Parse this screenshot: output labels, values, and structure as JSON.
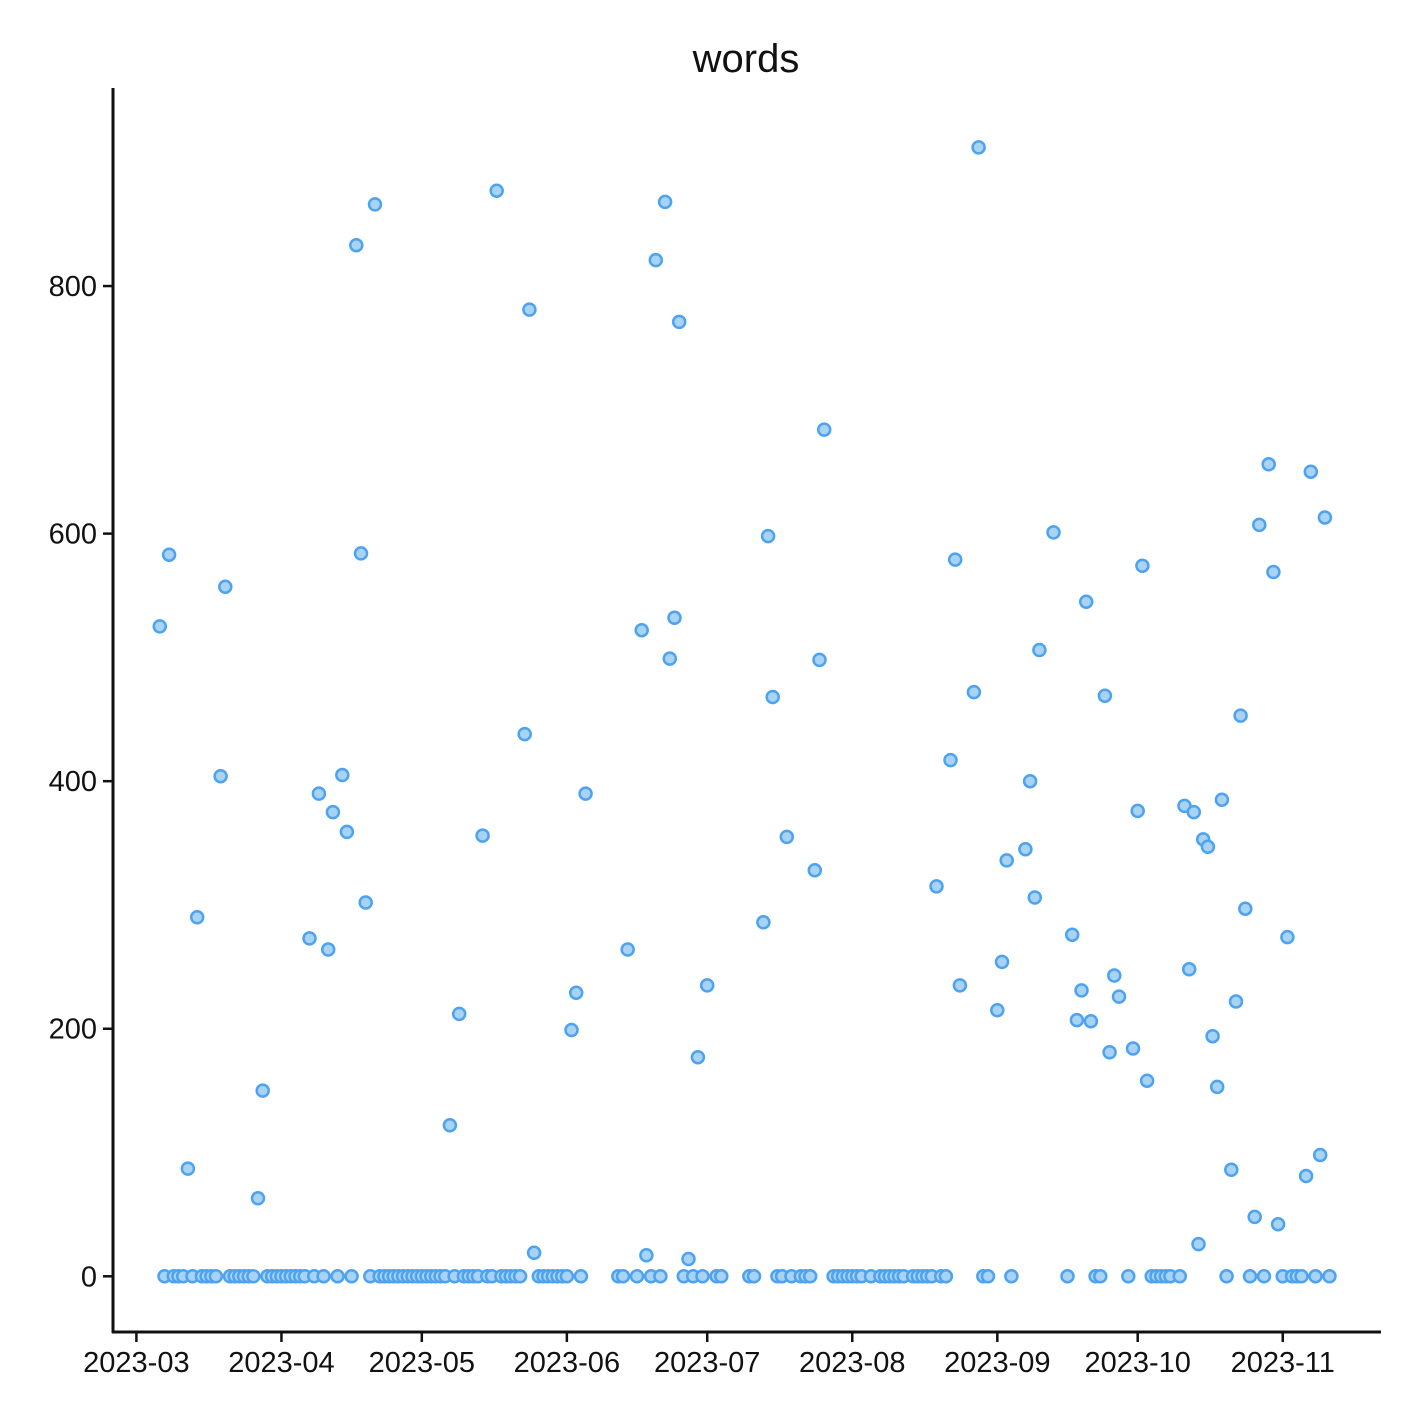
{
  "chart_data": {
    "type": "scatter",
    "title": "words",
    "xlabel": "",
    "ylabel": "",
    "x_axis_type": "date",
    "xlim": [
      "2023-02-24",
      "2023-11-22"
    ],
    "ylim": [
      -45,
      960
    ],
    "x_ticks": [
      "2023-03-01",
      "2023-04-01",
      "2023-05-01",
      "2023-06-01",
      "2023-07-01",
      "2023-08-01",
      "2023-09-01",
      "2023-10-01",
      "2023-11-01"
    ],
    "x_tick_labels": [
      "2023-03",
      "2023-04",
      "2023-05",
      "2023-06",
      "2023-07",
      "2023-08",
      "2023-09",
      "2023-10",
      "2023-11"
    ],
    "y_ticks": [
      0,
      200,
      400,
      600,
      800
    ],
    "y_tick_labels": [
      "0",
      "200",
      "400",
      "600",
      "800"
    ],
    "grid": false,
    "marker_fill": "#a9d3f5",
    "marker_edge": "#4da3f0",
    "points": [
      [
        "2023-03-06",
        525
      ],
      [
        "2023-03-07",
        0
      ],
      [
        "2023-03-08",
        583
      ],
      [
        "2023-03-09",
        0
      ],
      [
        "2023-03-10",
        0
      ],
      [
        "2023-03-11",
        0
      ],
      [
        "2023-03-12",
        87
      ],
      [
        "2023-03-13",
        0
      ],
      [
        "2023-03-14",
        290
      ],
      [
        "2023-03-15",
        0
      ],
      [
        "2023-03-16",
        0
      ],
      [
        "2023-03-17",
        0
      ],
      [
        "2023-03-18",
        0
      ],
      [
        "2023-03-19",
        404
      ],
      [
        "2023-03-20",
        557
      ],
      [
        "2023-03-21",
        0
      ],
      [
        "2023-03-22",
        0
      ],
      [
        "2023-03-23",
        0
      ],
      [
        "2023-03-24",
        0
      ],
      [
        "2023-03-25",
        0
      ],
      [
        "2023-03-26",
        0
      ],
      [
        "2023-03-27",
        63
      ],
      [
        "2023-03-28",
        150
      ],
      [
        "2023-03-29",
        0
      ],
      [
        "2023-03-30",
        0
      ],
      [
        "2023-03-31",
        0
      ],
      [
        "2023-04-01",
        0
      ],
      [
        "2023-04-02",
        0
      ],
      [
        "2023-04-03",
        0
      ],
      [
        "2023-04-04",
        0
      ],
      [
        "2023-04-05",
        0
      ],
      [
        "2023-04-06",
        0
      ],
      [
        "2023-04-07",
        273
      ],
      [
        "2023-04-08",
        0
      ],
      [
        "2023-04-09",
        390
      ],
      [
        "2023-04-10",
        0
      ],
      [
        "2023-04-11",
        264
      ],
      [
        "2023-04-12",
        375
      ],
      [
        "2023-04-13",
        0
      ],
      [
        "2023-04-14",
        405
      ],
      [
        "2023-04-15",
        359
      ],
      [
        "2023-04-16",
        0
      ],
      [
        "2023-04-17",
        833
      ],
      [
        "2023-04-18",
        584
      ],
      [
        "2023-04-19",
        302
      ],
      [
        "2023-04-20",
        0
      ],
      [
        "2023-04-21",
        866
      ],
      [
        "2023-04-22",
        0
      ],
      [
        "2023-04-23",
        0
      ],
      [
        "2023-04-24",
        0
      ],
      [
        "2023-04-25",
        0
      ],
      [
        "2023-04-26",
        0
      ],
      [
        "2023-04-27",
        0
      ],
      [
        "2023-04-28",
        0
      ],
      [
        "2023-04-29",
        0
      ],
      [
        "2023-04-30",
        0
      ],
      [
        "2023-05-01",
        0
      ],
      [
        "2023-05-02",
        0
      ],
      [
        "2023-05-03",
        0
      ],
      [
        "2023-05-04",
        0
      ],
      [
        "2023-05-05",
        0
      ],
      [
        "2023-05-06",
        0
      ],
      [
        "2023-05-07",
        122
      ],
      [
        "2023-05-08",
        0
      ],
      [
        "2023-05-09",
        212
      ],
      [
        "2023-05-10",
        0
      ],
      [
        "2023-05-11",
        0
      ],
      [
        "2023-05-12",
        0
      ],
      [
        "2023-05-13",
        0
      ],
      [
        "2023-05-14",
        356
      ],
      [
        "2023-05-15",
        0
      ],
      [
        "2023-05-16",
        0
      ],
      [
        "2023-05-17",
        877
      ],
      [
        "2023-05-18",
        0
      ],
      [
        "2023-05-19",
        0
      ],
      [
        "2023-05-20",
        0
      ],
      [
        "2023-05-21",
        0
      ],
      [
        "2023-05-22",
        0
      ],
      [
        "2023-05-23",
        438
      ],
      [
        "2023-05-24",
        781
      ],
      [
        "2023-05-25",
        19
      ],
      [
        "2023-05-26",
        0
      ],
      [
        "2023-05-27",
        0
      ],
      [
        "2023-05-28",
        0
      ],
      [
        "2023-05-29",
        0
      ],
      [
        "2023-05-30",
        0
      ],
      [
        "2023-05-31",
        0
      ],
      [
        "2023-06-01",
        0
      ],
      [
        "2023-06-02",
        199
      ],
      [
        "2023-06-03",
        229
      ],
      [
        "2023-06-04",
        0
      ],
      [
        "2023-06-05",
        390
      ],
      [
        "2023-06-12",
        0
      ],
      [
        "2023-06-13",
        0
      ],
      [
        "2023-06-14",
        264
      ],
      [
        "2023-06-16",
        0
      ],
      [
        "2023-06-17",
        522
      ],
      [
        "2023-06-18",
        17
      ],
      [
        "2023-06-19",
        0
      ],
      [
        "2023-06-20",
        821
      ],
      [
        "2023-06-21",
        0
      ],
      [
        "2023-06-22",
        868
      ],
      [
        "2023-06-23",
        499
      ],
      [
        "2023-06-24",
        532
      ],
      [
        "2023-06-25",
        771
      ],
      [
        "2023-06-26",
        0
      ],
      [
        "2023-06-27",
        14
      ],
      [
        "2023-06-28",
        0
      ],
      [
        "2023-06-29",
        177
      ],
      [
        "2023-06-30",
        0
      ],
      [
        "2023-07-01",
        235
      ],
      [
        "2023-07-03",
        0
      ],
      [
        "2023-07-04",
        0
      ],
      [
        "2023-07-10",
        0
      ],
      [
        "2023-07-11",
        0
      ],
      [
        "2023-07-13",
        286
      ],
      [
        "2023-07-14",
        598
      ],
      [
        "2023-07-15",
        468
      ],
      [
        "2023-07-16",
        0
      ],
      [
        "2023-07-17",
        0
      ],
      [
        "2023-07-18",
        355
      ],
      [
        "2023-07-19",
        0
      ],
      [
        "2023-07-21",
        0
      ],
      [
        "2023-07-22",
        0
      ],
      [
        "2023-07-23",
        0
      ],
      [
        "2023-07-24",
        328
      ],
      [
        "2023-07-25",
        498
      ],
      [
        "2023-07-26",
        684
      ],
      [
        "2023-07-28",
        0
      ],
      [
        "2023-07-29",
        0
      ],
      [
        "2023-07-30",
        0
      ],
      [
        "2023-07-31",
        0
      ],
      [
        "2023-08-01",
        0
      ],
      [
        "2023-08-02",
        0
      ],
      [
        "2023-08-03",
        0
      ],
      [
        "2023-08-05",
        0
      ],
      [
        "2023-08-07",
        0
      ],
      [
        "2023-08-08",
        0
      ],
      [
        "2023-08-09",
        0
      ],
      [
        "2023-08-10",
        0
      ],
      [
        "2023-08-11",
        0
      ],
      [
        "2023-08-12",
        0
      ],
      [
        "2023-08-14",
        0
      ],
      [
        "2023-08-15",
        0
      ],
      [
        "2023-08-16",
        0
      ],
      [
        "2023-08-17",
        0
      ],
      [
        "2023-08-18",
        0
      ],
      [
        "2023-08-19",
        315
      ],
      [
        "2023-08-20",
        0
      ],
      [
        "2023-08-21",
        0
      ],
      [
        "2023-08-22",
        417
      ],
      [
        "2023-08-23",
        579
      ],
      [
        "2023-08-24",
        235
      ],
      [
        "2023-08-27",
        472
      ],
      [
        "2023-08-28",
        912
      ],
      [
        "2023-08-29",
        0
      ],
      [
        "2023-08-30",
        0
      ],
      [
        "2023-09-01",
        215
      ],
      [
        "2023-09-02",
        254
      ],
      [
        "2023-09-03",
        336
      ],
      [
        "2023-09-04",
        0
      ],
      [
        "2023-09-07",
        345
      ],
      [
        "2023-09-08",
        400
      ],
      [
        "2023-09-09",
        306
      ],
      [
        "2023-09-10",
        506
      ],
      [
        "2023-09-13",
        601
      ],
      [
        "2023-09-16",
        0
      ],
      [
        "2023-09-17",
        276
      ],
      [
        "2023-09-18",
        207
      ],
      [
        "2023-09-19",
        231
      ],
      [
        "2023-09-20",
        545
      ],
      [
        "2023-09-21",
        206
      ],
      [
        "2023-09-22",
        0
      ],
      [
        "2023-09-23",
        0
      ],
      [
        "2023-09-24",
        469
      ],
      [
        "2023-09-25",
        181
      ],
      [
        "2023-09-26",
        243
      ],
      [
        "2023-09-27",
        226
      ],
      [
        "2023-09-29",
        0
      ],
      [
        "2023-09-30",
        184
      ],
      [
        "2023-10-01",
        376
      ],
      [
        "2023-10-02",
        574
      ],
      [
        "2023-10-03",
        158
      ],
      [
        "2023-10-04",
        0
      ],
      [
        "2023-10-05",
        0
      ],
      [
        "2023-10-06",
        0
      ],
      [
        "2023-10-07",
        0
      ],
      [
        "2023-10-08",
        0
      ],
      [
        "2023-10-10",
        0
      ],
      [
        "2023-10-11",
        380
      ],
      [
        "2023-10-12",
        248
      ],
      [
        "2023-10-13",
        375
      ],
      [
        "2023-10-14",
        26
      ],
      [
        "2023-10-15",
        353
      ],
      [
        "2023-10-16",
        347
      ],
      [
        "2023-10-17",
        194
      ],
      [
        "2023-10-18",
        153
      ],
      [
        "2023-10-19",
        385
      ],
      [
        "2023-10-20",
        0
      ],
      [
        "2023-10-21",
        86
      ],
      [
        "2023-10-22",
        222
      ],
      [
        "2023-10-23",
        453
      ],
      [
        "2023-10-24",
        297
      ],
      [
        "2023-10-25",
        0
      ],
      [
        "2023-10-26",
        48
      ],
      [
        "2023-10-27",
        607
      ],
      [
        "2023-10-28",
        0
      ],
      [
        "2023-10-29",
        656
      ],
      [
        "2023-10-30",
        569
      ],
      [
        "2023-10-31",
        42
      ],
      [
        "2023-11-01",
        0
      ],
      [
        "2023-11-02",
        274
      ],
      [
        "2023-11-03",
        0
      ],
      [
        "2023-11-04",
        0
      ],
      [
        "2023-11-05",
        0
      ],
      [
        "2023-11-06",
        81
      ],
      [
        "2023-11-07",
        650
      ],
      [
        "2023-11-08",
        0
      ],
      [
        "2023-11-09",
        98
      ],
      [
        "2023-11-10",
        613
      ],
      [
        "2023-11-11",
        0
      ]
    ]
  }
}
